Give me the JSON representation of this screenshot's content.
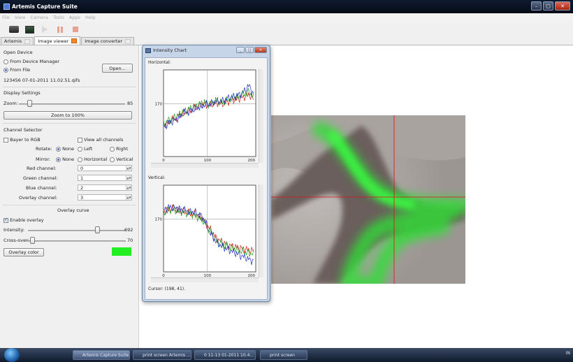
{
  "window": {
    "title": "Artemis Capture Suite"
  },
  "menu": [
    "File",
    "View",
    "Camera",
    "Tools",
    "Apps",
    "Help"
  ],
  "tabs": [
    {
      "label": "Artemis"
    },
    {
      "label": "Image viewer"
    },
    {
      "label": "Image converter"
    }
  ],
  "open_device": {
    "heading": "Open Device",
    "from_device_manager": "From Device Manager",
    "from_file": "From File",
    "open_button": "Open...",
    "filename": "123456 07-01-2011 11.02.51.qifs"
  },
  "display_settings": {
    "heading": "Display Settings",
    "zoom_label": "Zoom:",
    "zoom_value": "85",
    "zoom_level": 0.08,
    "zoom_100_button": "Zoom to 100%"
  },
  "channel_selector": {
    "heading": "Channel Selector",
    "bayer_to_rgb": "Bayer to RGB",
    "view_all_channels": "View all channels",
    "rotate_label": "Rotate:",
    "rotate_options": [
      "None",
      "Left",
      "Right"
    ],
    "mirror_label": "Mirror:",
    "mirror_options": [
      "None",
      "Horizontal",
      "Vertical"
    ],
    "red_label": "Red channel:",
    "red_value": "0",
    "green_label": "Green channel:",
    "green_value": "1",
    "blue_label": "Blue channel:",
    "blue_value": "2",
    "overlay_label": "Overlay channel:",
    "overlay_value": "3"
  },
  "overlay_curve": {
    "heading": "Overlay curve",
    "enable_overlay": "Enable overlay",
    "intensity_label": "Intensity:",
    "intensity_value": "692",
    "intensity_level": 0.72,
    "crossover_label": "Cross-over:",
    "crossover_value": "70",
    "crossover_level": 0.05,
    "overlay_color_button": "Overlay color",
    "overlay_color": "#22ee22"
  },
  "intensity_chart": {
    "title": "Intensity Chart",
    "horizontal_label": "Horizontal:",
    "vertical_label": "Vertical:",
    "cursor_text": "Cursor: (198, 41).",
    "colors": {
      "red": "#d02020",
      "green": "#20a020",
      "blue": "#2030c0"
    }
  },
  "chart_data": [
    {
      "type": "line",
      "title": "Horizontal:",
      "x_ticks": [
        "0",
        "100",
        "200"
      ],
      "y_ticks": [
        "170"
      ],
      "xlim": [
        0,
        210
      ],
      "ylim": [
        0,
        280
      ],
      "x": [
        0,
        15,
        30,
        45,
        60,
        75,
        90,
        105,
        120,
        135,
        150,
        165,
        180,
        195,
        205
      ],
      "series": [
        {
          "values": [
            100,
            115,
            125,
            140,
            150,
            160,
            170,
            165,
            175,
            170,
            180,
            185,
            190,
            200,
            185
          ]
        },
        {
          "values": [
            105,
            120,
            130,
            145,
            155,
            165,
            175,
            170,
            180,
            175,
            185,
            190,
            200,
            210,
            190
          ]
        },
        {
          "values": [
            95,
            110,
            120,
            140,
            145,
            155,
            165,
            170,
            178,
            180,
            190,
            195,
            205,
            230,
            200
          ]
        }
      ]
    },
    {
      "type": "line",
      "title": "Vertical:",
      "x_ticks": [
        "0",
        "100",
        "200"
      ],
      "y_ticks": [
        "170"
      ],
      "xlim": [
        0,
        210
      ],
      "ylim": [
        0,
        280
      ],
      "x": [
        0,
        15,
        30,
        45,
        60,
        75,
        90,
        105,
        120,
        135,
        150,
        165,
        180,
        195,
        205
      ],
      "series": [
        {
          "values": [
            195,
            205,
            200,
            195,
            190,
            185,
            170,
            140,
            110,
            95,
            85,
            80,
            75,
            70,
            68
          ]
        },
        {
          "values": [
            190,
            200,
            198,
            192,
            188,
            180,
            165,
            135,
            100,
            88,
            80,
            72,
            65,
            60,
            58
          ]
        },
        {
          "values": [
            200,
            210,
            205,
            200,
            195,
            190,
            175,
            130,
            95,
            80,
            70,
            60,
            50,
            40,
            35
          ]
        }
      ]
    }
  ],
  "taskbar": {
    "items": [
      "Artemis Capture Suite",
      "print screen Artemis ...",
      "0 11-13 01-2011 10.4...",
      "print screen"
    ],
    "tray": "IN"
  }
}
